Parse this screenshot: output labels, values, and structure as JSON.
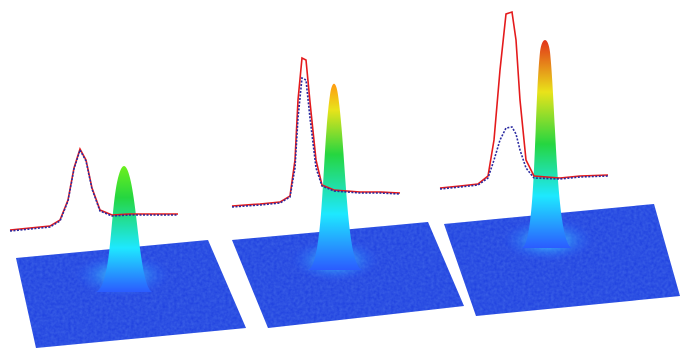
{
  "figure": {
    "panels": [
      {
        "id": "panel-1",
        "peak_level": 0.47,
        "solid_profile_peak": 0.55,
        "dotted_profile_peak": 0.55
      },
      {
        "id": "panel-2",
        "peak_level": 0.72,
        "solid_profile_peak": 0.8,
        "dotted_profile_peak": 0.72
      },
      {
        "id": "panel-3",
        "peak_level": 0.92,
        "solid_profile_peak": 1.0,
        "dotted_profile_peak": 0.45
      }
    ],
    "colors": {
      "surface_base": "#1f3fd6",
      "surface_mid_cyan": "#19e3f0",
      "surface_mid_green": "#2de02a",
      "surface_mid_yellow": "#f2e21a",
      "surface_peak_red": "#e02b10",
      "profile_solid": "#e41a1c",
      "profile_dotted": "#1f2a9a",
      "background": "#ffffff"
    },
    "icons": [
      "surface-plot",
      "line-profile"
    ]
  }
}
